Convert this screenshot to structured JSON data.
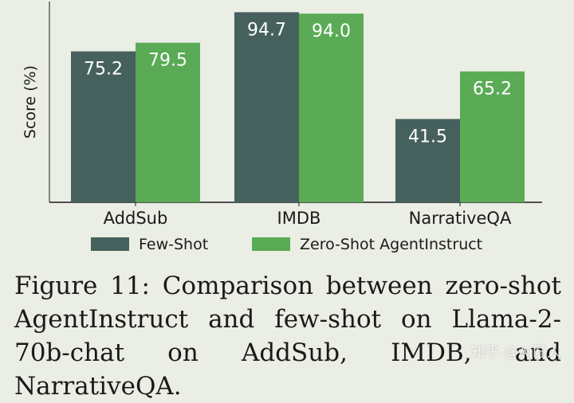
{
  "caption": "Figure 11: Comparison between zero-shot AgentInstruct and few-shot on Llama-2-70b-chat on AddSub, IMDB, and NarrativeQA.",
  "watermark": "知乎 @AI匠人",
  "colors": {
    "few_shot": "#46605e",
    "zero_shot": "#5aaa56",
    "axis": "#1a1a1a",
    "value_label": "#ffffff"
  },
  "chart_data": {
    "type": "bar",
    "categories": [
      "AddSub",
      "IMDB",
      "NarrativeQA"
    ],
    "series": [
      {
        "name": "Few-Shot",
        "values": [
          75.2,
          94.7,
          41.5
        ]
      },
      {
        "name": "Zero-Shot AgentInstruct",
        "values": [
          79.5,
          94.0,
          65.2
        ]
      }
    ],
    "ylabel": "Score (%)",
    "xlabel": "",
    "ylim": [
      0,
      100
    ],
    "value_labels": [
      "75.2",
      "94.7",
      "41.5",
      "79.5",
      "94.0",
      "65.2"
    ],
    "legend_position": "bottom",
    "grid": false
  }
}
